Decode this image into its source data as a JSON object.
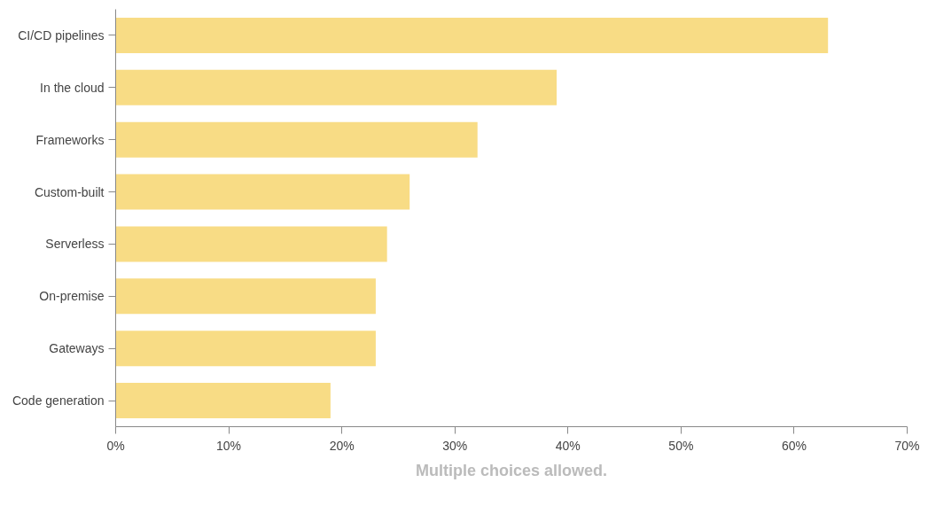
{
  "chart_data": {
    "type": "bar",
    "orientation": "horizontal",
    "categories": [
      "CI/CD pipelines",
      "In the cloud",
      "Frameworks",
      "Custom-built",
      "Serverless",
      "On-premise",
      "Gateways",
      "Code generation"
    ],
    "values": [
      63,
      39,
      32,
      26,
      24,
      23,
      23,
      19
    ],
    "color": "#f8dc85",
    "xlim": [
      0,
      70
    ],
    "xticks": [
      {
        "value": 0,
        "label": "0%"
      },
      {
        "value": 10,
        "label": "10%"
      },
      {
        "value": 20,
        "label": "20%"
      },
      {
        "value": 30,
        "label": "30%"
      },
      {
        "value": 40,
        "label": "40%"
      },
      {
        "value": 50,
        "label": "50%"
      },
      {
        "value": 60,
        "label": "60%"
      },
      {
        "value": 70,
        "label": "70%"
      }
    ],
    "grid": false,
    "annotations": [
      "Multiple choices allowed."
    ]
  }
}
